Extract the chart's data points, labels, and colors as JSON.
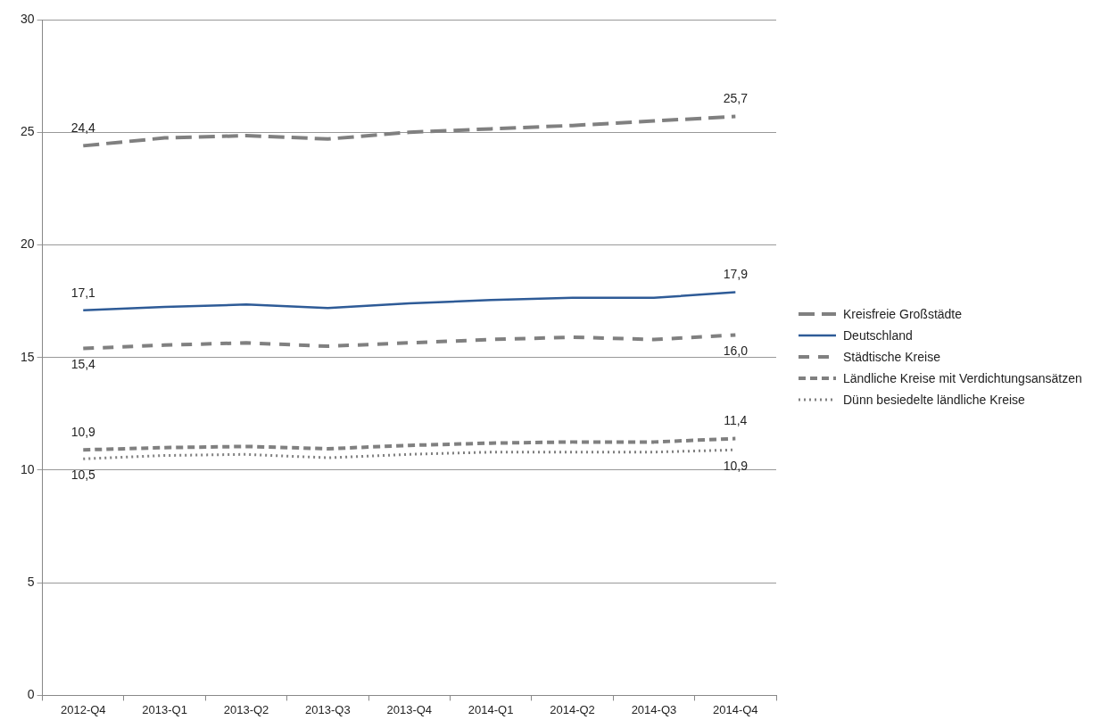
{
  "chart_data": {
    "type": "line",
    "categories": [
      "2012-Q4",
      "2013-Q1",
      "2013-Q2",
      "2013-Q3",
      "2013-Q4",
      "2014-Q1",
      "2014-Q2",
      "2014-Q3",
      "2014-Q4"
    ],
    "ylim": [
      0,
      30
    ],
    "yticks": [
      0,
      5,
      10,
      15,
      20,
      25,
      30
    ],
    "grid": "y",
    "legend": "right",
    "marker": "none",
    "series": [
      {
        "name": "Kreisfreie Großstädte",
        "color": "#808080",
        "line_style": "dashed",
        "values": [
          24.4,
          24.75,
          24.85,
          24.7,
          25.0,
          25.15,
          25.3,
          25.5,
          25.7
        ],
        "value_labels": [
          "24,4",
          null,
          null,
          null,
          null,
          null,
          null,
          null,
          "25,7"
        ]
      },
      {
        "name": "Deutschland",
        "color": "#2e5b97",
        "line_style": "solid",
        "values": [
          17.1,
          17.25,
          17.35,
          17.2,
          17.4,
          17.55,
          17.65,
          17.65,
          17.9
        ],
        "value_labels": [
          "17,1",
          null,
          null,
          null,
          null,
          null,
          null,
          null,
          "17,9"
        ]
      },
      {
        "name": "Städtische Kreise",
        "color": "#808080",
        "line_style": "dashed",
        "values": [
          15.4,
          15.55,
          15.65,
          15.5,
          15.65,
          15.8,
          15.9,
          15.8,
          16.0
        ],
        "value_labels": [
          "15,4",
          null,
          null,
          null,
          null,
          null,
          null,
          null,
          "16,0"
        ]
      },
      {
        "name": "Ländliche Kreise mit Verdichtungsansätzen",
        "color": "#808080",
        "line_style": "dashed",
        "values": [
          10.9,
          11.0,
          11.05,
          10.95,
          11.1,
          11.2,
          11.25,
          11.25,
          11.4
        ],
        "value_labels": [
          "10,9",
          null,
          null,
          null,
          null,
          null,
          null,
          null,
          "11,4"
        ]
      },
      {
        "name": "Dünn besiedelte ländliche Kreise",
        "color": "#808080",
        "line_style": "dotted",
        "values": [
          10.5,
          10.65,
          10.7,
          10.55,
          10.7,
          10.8,
          10.8,
          10.8,
          10.9
        ],
        "value_labels": [
          "10,5",
          null,
          null,
          null,
          null,
          null,
          null,
          null,
          "10,9"
        ]
      }
    ]
  }
}
